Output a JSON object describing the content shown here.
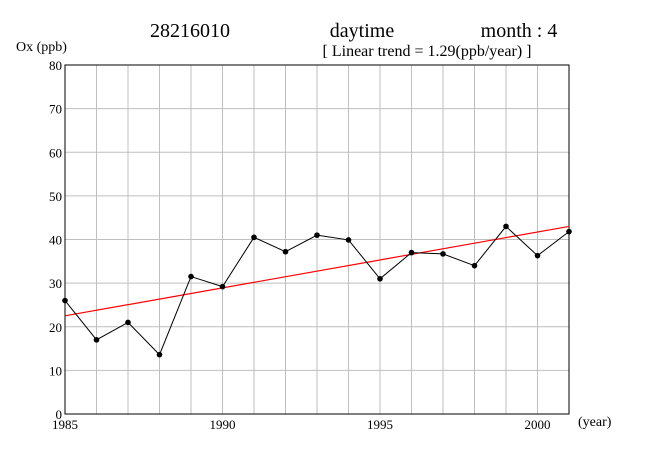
{
  "header": {
    "station": "28216010",
    "period": "daytime",
    "month": "month : 4",
    "trend": "[ Linear trend = 1.29(ppb/year) ]"
  },
  "chart_data": {
    "type": "line",
    "ylabel": "Ox (ppb)",
    "xlabel": "(year)",
    "xlim": [
      1985,
      2001
    ],
    "ylim": [
      0,
      80
    ],
    "xticks": [
      1985,
      1990,
      1995,
      2000
    ],
    "yticks": [
      0,
      10,
      20,
      30,
      40,
      50,
      60,
      70,
      80
    ],
    "grid": true,
    "series": [
      {
        "color": "#000000",
        "x": [
          1985,
          1986,
          1987,
          1988,
          1989,
          1990,
          1991,
          1992,
          1993,
          1994,
          1995,
          1996,
          1997,
          1998,
          1999,
          2000,
          2001
        ],
        "y": [
          26.0,
          17.0,
          21.0,
          13.6,
          31.5,
          29.2,
          40.5,
          37.2,
          41.0,
          39.9,
          31.0,
          37.0,
          36.7,
          34.0,
          43.0,
          36.3,
          41.8
        ]
      }
    ],
    "trend_line": {
      "color": "#ff0000",
      "x": [
        1985,
        2001
      ],
      "y": [
        22.5,
        43.0
      ]
    }
  }
}
